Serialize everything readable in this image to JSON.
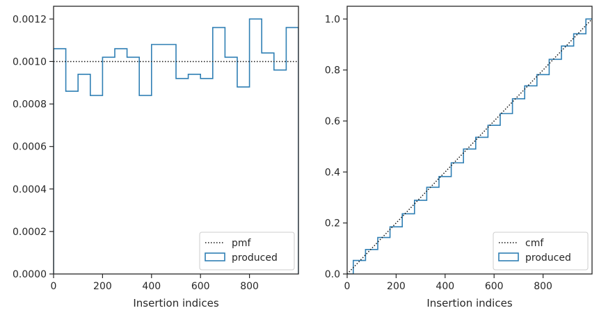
{
  "colors": {
    "series": "#2f7fb4",
    "reference": "#111111",
    "spine": "#262626",
    "legend_border": "#cccccc"
  },
  "chart_data": [
    {
      "type": "line",
      "variant": "step-histogram",
      "xlabel": "Insertion indices",
      "ylabel": "",
      "xlim": [
        0,
        1000
      ],
      "ylim": [
        0,
        0.00126
      ],
      "xticks": [
        0,
        200,
        400,
        600,
        800
      ],
      "xtick_labels": [
        "0",
        "200",
        "400",
        "600",
        "800"
      ],
      "yticks": [
        0,
        0.0002,
        0.0004,
        0.0006,
        0.0008,
        0.001,
        0.0012
      ],
      "ytick_labels": [
        "0.0000",
        "0.0002",
        "0.0004",
        "0.0006",
        "0.0008",
        "0.0010",
        "0.0012"
      ],
      "grid": false,
      "legend_position": "lower-right",
      "series": [
        {
          "name": "pmf",
          "style": "dotted",
          "x": [
            0,
            1000
          ],
          "y": [
            0.001,
            0.001
          ]
        },
        {
          "name": "produced",
          "style": "step",
          "bin_edges": [
            0,
            50,
            100,
            150,
            200,
            250,
            300,
            350,
            400,
            450,
            500,
            550,
            600,
            650,
            700,
            750,
            800,
            850,
            900,
            950,
            1000
          ],
          "values": [
            0.00106,
            0.00086,
            0.00094,
            0.00084,
            0.00102,
            0.00106,
            0.00102,
            0.00084,
            0.00108,
            0.00108,
            0.00092,
            0.00094,
            0.00092,
            0.00116,
            0.00102,
            0.00088,
            0.0012,
            0.00104,
            0.00096,
            0.00116
          ]
        }
      ]
    },
    {
      "type": "line",
      "variant": "step-cumulative",
      "xlabel": "Insertion indices",
      "ylabel": "",
      "xlim": [
        0,
        1000
      ],
      "ylim": [
        0,
        1.05
      ],
      "xticks": [
        0,
        200,
        400,
        600,
        800
      ],
      "xtick_labels": [
        "0",
        "200",
        "400",
        "600",
        "800"
      ],
      "yticks": [
        0,
        0.2,
        0.4,
        0.6,
        0.8,
        1.0
      ],
      "ytick_labels": [
        "0.0",
        "0.2",
        "0.4",
        "0.6",
        "0.8",
        "1.0"
      ],
      "grid": false,
      "legend_position": "lower-right",
      "series": [
        {
          "name": "cmf",
          "style": "dotted",
          "x": [
            0,
            1000
          ],
          "y": [
            0,
            1
          ]
        },
        {
          "name": "produced",
          "style": "step",
          "x": [
            0,
            50,
            100,
            150,
            200,
            250,
            300,
            350,
            400,
            450,
            500,
            550,
            600,
            650,
            700,
            750,
            800,
            850,
            900,
            950,
            1000
          ],
          "y": [
            0,
            0.053,
            0.096,
            0.143,
            0.185,
            0.236,
            0.289,
            0.34,
            0.382,
            0.436,
            0.49,
            0.536,
            0.583,
            0.629,
            0.687,
            0.738,
            0.782,
            0.842,
            0.894,
            0.942,
            1.0
          ]
        }
      ]
    }
  ]
}
